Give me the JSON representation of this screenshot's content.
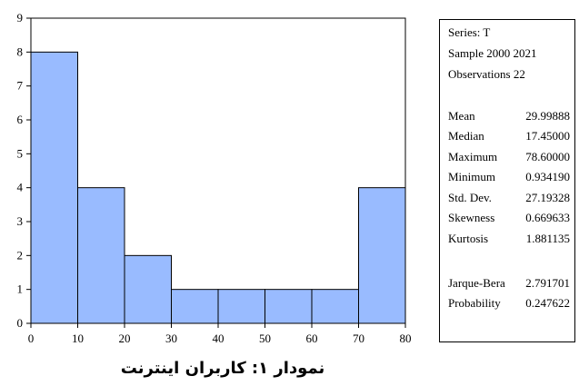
{
  "chart_data": {
    "type": "bar",
    "bins": [
      [
        0,
        10
      ],
      [
        10,
        20
      ],
      [
        20,
        30
      ],
      [
        30,
        40
      ],
      [
        40,
        50
      ],
      [
        50,
        60
      ],
      [
        60,
        70
      ],
      [
        70,
        80
      ]
    ],
    "values": [
      8,
      4,
      2,
      1,
      1,
      1,
      1,
      4
    ],
    "xlim": [
      0,
      80
    ],
    "ylim": [
      0,
      9
    ],
    "xticks": [
      0,
      10,
      20,
      30,
      40,
      50,
      60,
      70,
      80
    ],
    "yticks": [
      0,
      1,
      2,
      3,
      4,
      5,
      6,
      7,
      8,
      9
    ],
    "bar_color": "#99bbff",
    "grid": false,
    "title": "نمودار ۱: کاربران اینترنت"
  },
  "stats": {
    "series": "Series: T",
    "sample": "Sample 2000 2021",
    "observations": "Observations 22",
    "rows": [
      {
        "label": "Mean",
        "value": "29.99888"
      },
      {
        "label": "Median",
        "value": "17.45000"
      },
      {
        "label": "Maximum",
        "value": "78.60000"
      },
      {
        "label": "Minimum",
        "value": "0.934190"
      },
      {
        "label": "Std. Dev.",
        "value": "27.19328"
      },
      {
        "label": "Skewness",
        "value": "0.669633"
      },
      {
        "label": "Kurtosis",
        "value": "1.881135"
      }
    ],
    "tests": [
      {
        "label": "Jarque-Bera",
        "value": "2.791701"
      },
      {
        "label": "Probability",
        "value": "0.247622"
      }
    ]
  }
}
